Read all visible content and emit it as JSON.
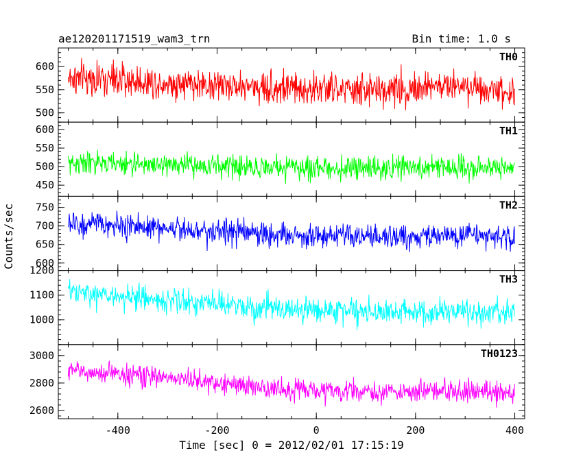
{
  "chart_data": {
    "type": "line",
    "title": "ae120201171519_wam3_trn",
    "subtitle": "Bin time: 1.0 s",
    "xlabel": "Time [sec] 0 = 2012/02/01 17:15:19",
    "ylabel": "Counts/sec",
    "xlim": [
      -520,
      420
    ],
    "x_ticks": [
      -400,
      -200,
      0,
      200,
      400
    ],
    "x_range": [
      -500,
      400
    ],
    "bin_time_s": 1.0,
    "grid": false,
    "panels": [
      {
        "name": "TH0",
        "color": "#ff0000",
        "ylim": [
          480,
          640
        ],
        "y_ticks": [
          500,
          550,
          600
        ],
        "mean_start": 575,
        "mean_end": 545,
        "spread": 28,
        "waveform": [
          {
            "x": -500,
            "y": 575
          },
          {
            "x": -300,
            "y": 565
          },
          {
            "x": -100,
            "y": 555
          },
          {
            "x": 100,
            "y": 548
          },
          {
            "x": 300,
            "y": 560
          },
          {
            "x": 400,
            "y": 545
          }
        ]
      },
      {
        "name": "TH1",
        "color": "#00ff00",
        "ylim": [
          420,
          620
        ],
        "y_ticks": [
          450,
          500,
          550,
          600
        ],
        "mean_start": 510,
        "mean_end": 495,
        "spread": 24,
        "waveform": [
          {
            "x": -500,
            "y": 510
          },
          {
            "x": -300,
            "y": 505
          },
          {
            "x": -100,
            "y": 498
          },
          {
            "x": 100,
            "y": 495
          },
          {
            "x": 300,
            "y": 500
          },
          {
            "x": 400,
            "y": 495
          }
        ]
      },
      {
        "name": "TH2",
        "color": "#0000ff",
        "ylim": [
          580,
          780
        ],
        "y_ticks": [
          600,
          650,
          700,
          750
        ],
        "mean_start": 705,
        "mean_end": 670,
        "spread": 26,
        "waveform": [
          {
            "x": -500,
            "y": 705
          },
          {
            "x": -300,
            "y": 695
          },
          {
            "x": -100,
            "y": 678
          },
          {
            "x": 100,
            "y": 668
          },
          {
            "x": 300,
            "y": 675
          },
          {
            "x": 400,
            "y": 670
          }
        ]
      },
      {
        "name": "TH3",
        "color": "#00ffff",
        "ylim": [
          900,
          1200
        ],
        "y_ticks": [
          1000,
          1100,
          1200
        ],
        "mean_start": 1110,
        "mean_end": 1025,
        "spread": 40,
        "waveform": [
          {
            "x": -500,
            "y": 1110
          },
          {
            "x": -300,
            "y": 1080
          },
          {
            "x": -100,
            "y": 1045
          },
          {
            "x": 100,
            "y": 1035
          },
          {
            "x": 300,
            "y": 1030
          },
          {
            "x": 400,
            "y": 1025
          }
        ]
      },
      {
        "name": "TH0123",
        "color": "#ff00ff",
        "ylim": [
          2540,
          3080
        ],
        "y_ticks": [
          2600,
          2800,
          3000
        ],
        "mean_start": 2890,
        "mean_end": 2730,
        "spread": 60,
        "waveform": [
          {
            "x": -500,
            "y": 2890
          },
          {
            "x": -300,
            "y": 2840
          },
          {
            "x": -100,
            "y": 2760
          },
          {
            "x": 100,
            "y": 2735
          },
          {
            "x": 300,
            "y": 2740
          },
          {
            "x": 400,
            "y": 2730
          }
        ]
      }
    ]
  }
}
